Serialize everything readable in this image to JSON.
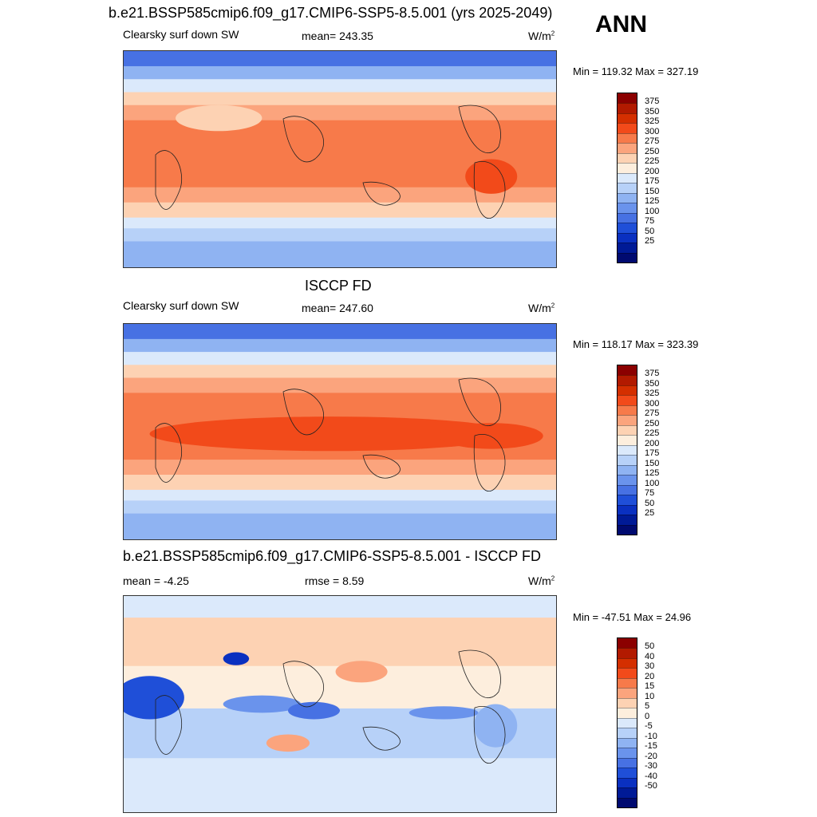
{
  "figure": {
    "title": "b.e21.BSSP585cmip6.f09_g17.CMIP6-SSP5-8.5.001 (yrs 2025-2049)",
    "season": "ANN"
  },
  "panels": [
    {
      "name": "model",
      "heading": "",
      "left_label": "Clearsky surf down SW",
      "center_label": "mean= 243.35",
      "units_base": "W/m",
      "units_exp": "2",
      "minmax": "Min = 119.32 Max = 327.19",
      "field": "absolute",
      "colorbar_labels": [
        "375",
        "350",
        "325",
        "300",
        "275",
        "250",
        "225",
        "200",
        "175",
        "150",
        "125",
        "100",
        "75",
        "50",
        "25"
      ],
      "colorbar_colors": [
        "#8b0000",
        "#b21a00",
        "#d42f00",
        "#f24a1a",
        "#f77a4a",
        "#fba47d",
        "#fdd2b3",
        "#fdeedd",
        "#dbe9fb",
        "#b7d1f8",
        "#8fb3f2",
        "#6a93ec",
        "#4771e3",
        "#1f4fd8",
        "#0a30c0",
        "#001a96",
        "#000a70"
      ]
    },
    {
      "name": "obs",
      "heading": "ISCCP FD",
      "left_label": "Clearsky surf down SW",
      "center_label": "mean= 247.60",
      "units_base": "W/m",
      "units_exp": "2",
      "minmax": "Min = 118.17 Max = 323.39",
      "field": "absolute",
      "colorbar_labels": [
        "375",
        "350",
        "325",
        "300",
        "275",
        "250",
        "225",
        "200",
        "175",
        "150",
        "125",
        "100",
        "75",
        "50",
        "25"
      ],
      "colorbar_colors": [
        "#8b0000",
        "#b21a00",
        "#d42f00",
        "#f24a1a",
        "#f77a4a",
        "#fba47d",
        "#fdd2b3",
        "#fdeedd",
        "#dbe9fb",
        "#b7d1f8",
        "#8fb3f2",
        "#6a93ec",
        "#4771e3",
        "#1f4fd8",
        "#0a30c0",
        "#001a96",
        "#000a70"
      ]
    },
    {
      "name": "diff",
      "heading": "b.e21.BSSP585cmip6.f09_g17.CMIP6-SSP5-8.5.001 - ISCCP FD",
      "left_label": "mean =  -4.25",
      "center_label": "rmse =   8.59",
      "units_base": "W/m",
      "units_exp": "2",
      "minmax": "Min = -47.51 Max =  24.96",
      "field": "difference",
      "colorbar_labels": [
        "50",
        "40",
        "30",
        "20",
        "15",
        "10",
        "5",
        "0",
        "-5",
        "-10",
        "-15",
        "-20",
        "-30",
        "-40",
        "-50"
      ],
      "colorbar_colors": [
        "#8b0000",
        "#b21a00",
        "#d42f00",
        "#f24a1a",
        "#f77a4a",
        "#fba47d",
        "#fdd2b3",
        "#fdeedd",
        "#dbe9fb",
        "#b7d1f8",
        "#8fb3f2",
        "#6a93ec",
        "#4771e3",
        "#1f4fd8",
        "#0a30c0",
        "#001a96",
        "#000a70"
      ]
    }
  ]
}
